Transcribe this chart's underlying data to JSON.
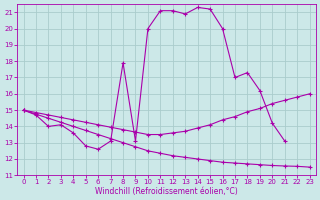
{
  "xlabel": "Windchill (Refroidissement éolien,°C)",
  "background_color": "#cce8e8",
  "grid_color": "#aacccc",
  "line_color": "#aa00aa",
  "xlim_min": -0.5,
  "xlim_max": 23.5,
  "ylim_min": 11.0,
  "ylim_max": 21.5,
  "yticks": [
    11,
    12,
    13,
    14,
    15,
    16,
    17,
    18,
    19,
    20,
    21
  ],
  "xticks": [
    0,
    1,
    2,
    3,
    4,
    5,
    6,
    7,
    8,
    9,
    10,
    11,
    12,
    13,
    14,
    15,
    16,
    17,
    18,
    19,
    20,
    21,
    22,
    23
  ],
  "line1_x": [
    0,
    1,
    2,
    3,
    4,
    5,
    6,
    7,
    8,
    9,
    10,
    11,
    12,
    13,
    14,
    15,
    16,
    17,
    18,
    19,
    20,
    21
  ],
  "line1_y": [
    15.0,
    14.7,
    14.0,
    14.1,
    13.6,
    12.8,
    12.6,
    13.1,
    17.9,
    13.1,
    20.0,
    21.1,
    21.1,
    20.9,
    21.3,
    21.2,
    20.0,
    17.0,
    17.3,
    16.2,
    14.2,
    13.1
  ],
  "line2_x": [
    0,
    1,
    2,
    3,
    4,
    5,
    6,
    7,
    8,
    9,
    10,
    11,
    12,
    13,
    14,
    15,
    16,
    17,
    18,
    19,
    20,
    21,
    22,
    23
  ],
  "line2_y": [
    15.0,
    14.85,
    14.7,
    14.55,
    14.4,
    14.25,
    14.1,
    13.95,
    13.8,
    13.65,
    13.5,
    13.5,
    13.6,
    13.7,
    13.9,
    14.1,
    14.4,
    14.6,
    14.9,
    15.1,
    15.4,
    15.6,
    15.8,
    16.0
  ],
  "line3_x": [
    0,
    1,
    2,
    3,
    4,
    5,
    6,
    7,
    8,
    9,
    10,
    11,
    12,
    13,
    14,
    15,
    16,
    17,
    18,
    19,
    20,
    21,
    22,
    23
  ],
  "line3_y": [
    15.0,
    14.75,
    14.5,
    14.25,
    14.0,
    13.75,
    13.5,
    13.25,
    13.0,
    12.75,
    12.5,
    12.35,
    12.2,
    12.1,
    12.0,
    11.9,
    11.8,
    11.75,
    11.7,
    11.65,
    11.6,
    11.57,
    11.55,
    11.5
  ]
}
